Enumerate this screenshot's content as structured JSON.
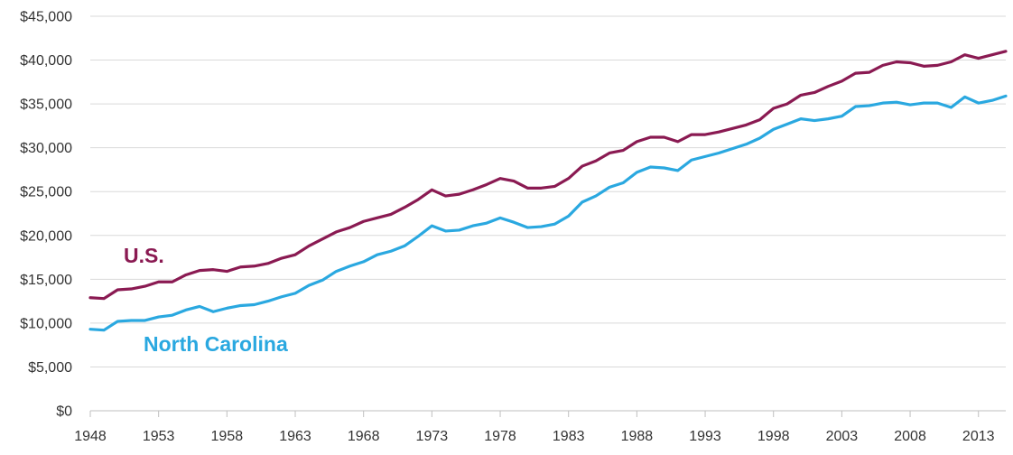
{
  "chart_data": {
    "type": "line",
    "title": "",
    "xlabel": "",
    "ylabel": "",
    "xlim": [
      1948,
      2015
    ],
    "ylim": [
      0,
      45000
    ],
    "grid": true,
    "legend": "inline labels on chart",
    "x_ticks": [
      1948,
      1953,
      1958,
      1963,
      1968,
      1973,
      1978,
      1983,
      1988,
      1993,
      1998,
      2003,
      2008,
      2013
    ],
    "x_tick_labels": [
      "1948",
      "1953",
      "1958",
      "1963",
      "1968",
      "1973",
      "1978",
      "1983",
      "1988",
      "1993",
      "1998",
      "2003",
      "2008",
      "2013"
    ],
    "y_ticks": [
      0,
      5000,
      10000,
      15000,
      20000,
      25000,
      30000,
      35000,
      40000,
      45000
    ],
    "y_tick_labels": [
      "$0",
      "$5,000",
      "$10,000",
      "$15,000",
      "$20,000",
      "$25,000",
      "$30,000",
      "$35,000",
      "$40,000",
      "$45,000"
    ],
    "x": [
      1948,
      1949,
      1950,
      1951,
      1952,
      1953,
      1954,
      1955,
      1956,
      1957,
      1958,
      1959,
      1960,
      1961,
      1962,
      1963,
      1964,
      1965,
      1966,
      1967,
      1968,
      1969,
      1970,
      1971,
      1972,
      1973,
      1974,
      1975,
      1976,
      1977,
      1978,
      1979,
      1980,
      1981,
      1982,
      1983,
      1984,
      1985,
      1986,
      1987,
      1988,
      1989,
      1990,
      1991,
      1992,
      1993,
      1994,
      1995,
      1996,
      1997,
      1998,
      1999,
      2000,
      2001,
      2002,
      2003,
      2004,
      2005,
      2006,
      2007,
      2008,
      2009,
      2010,
      2011,
      2012,
      2013,
      2014,
      2015
    ],
    "series": [
      {
        "name": "U.S.",
        "color": "#8a1a52",
        "label_color": "#8a1a52",
        "values": [
          12900,
          12800,
          13800,
          13900,
          14200,
          14700,
          14700,
          15500,
          16000,
          16100,
          15900,
          16400,
          16500,
          16800,
          17400,
          17800,
          18800,
          19600,
          20400,
          20900,
          21600,
          22000,
          22400,
          23200,
          24100,
          25200,
          24500,
          24700,
          25200,
          25800,
          26500,
          26200,
          25400,
          25400,
          25600,
          26500,
          27900,
          28500,
          29400,
          29700,
          30700,
          31200,
          31200,
          30700,
          31500,
          31500,
          31800,
          32200,
          32600,
          33200,
          34500,
          35000,
          36000,
          36300,
          37000,
          37600,
          38500,
          38600,
          39400,
          39800,
          39700,
          39300,
          39400,
          39800,
          40600,
          40200,
          40600,
          41000
        ]
      },
      {
        "name": "North Carolina",
        "color": "#2aa8e0",
        "label_color": "#2aa8e0",
        "values": [
          9300,
          9200,
          10200,
          10300,
          10300,
          10700,
          10900,
          11500,
          11900,
          11300,
          11700,
          12000,
          12100,
          12500,
          13000,
          13400,
          14300,
          14900,
          15900,
          16500,
          17000,
          17800,
          18200,
          18800,
          19900,
          21100,
          20500,
          20600,
          21100,
          21400,
          22000,
          21500,
          20900,
          21000,
          21300,
          22200,
          23800,
          24500,
          25500,
          26000,
          27200,
          27800,
          27700,
          27400,
          28600,
          29000,
          29400,
          29900,
          30400,
          31100,
          32100,
          32700,
          33300,
          33100,
          33300,
          33600,
          34700,
          34800,
          35100,
          35200,
          34900,
          35100,
          35100,
          34600,
          35800,
          35100,
          35400,
          35900
        ]
      }
    ]
  }
}
